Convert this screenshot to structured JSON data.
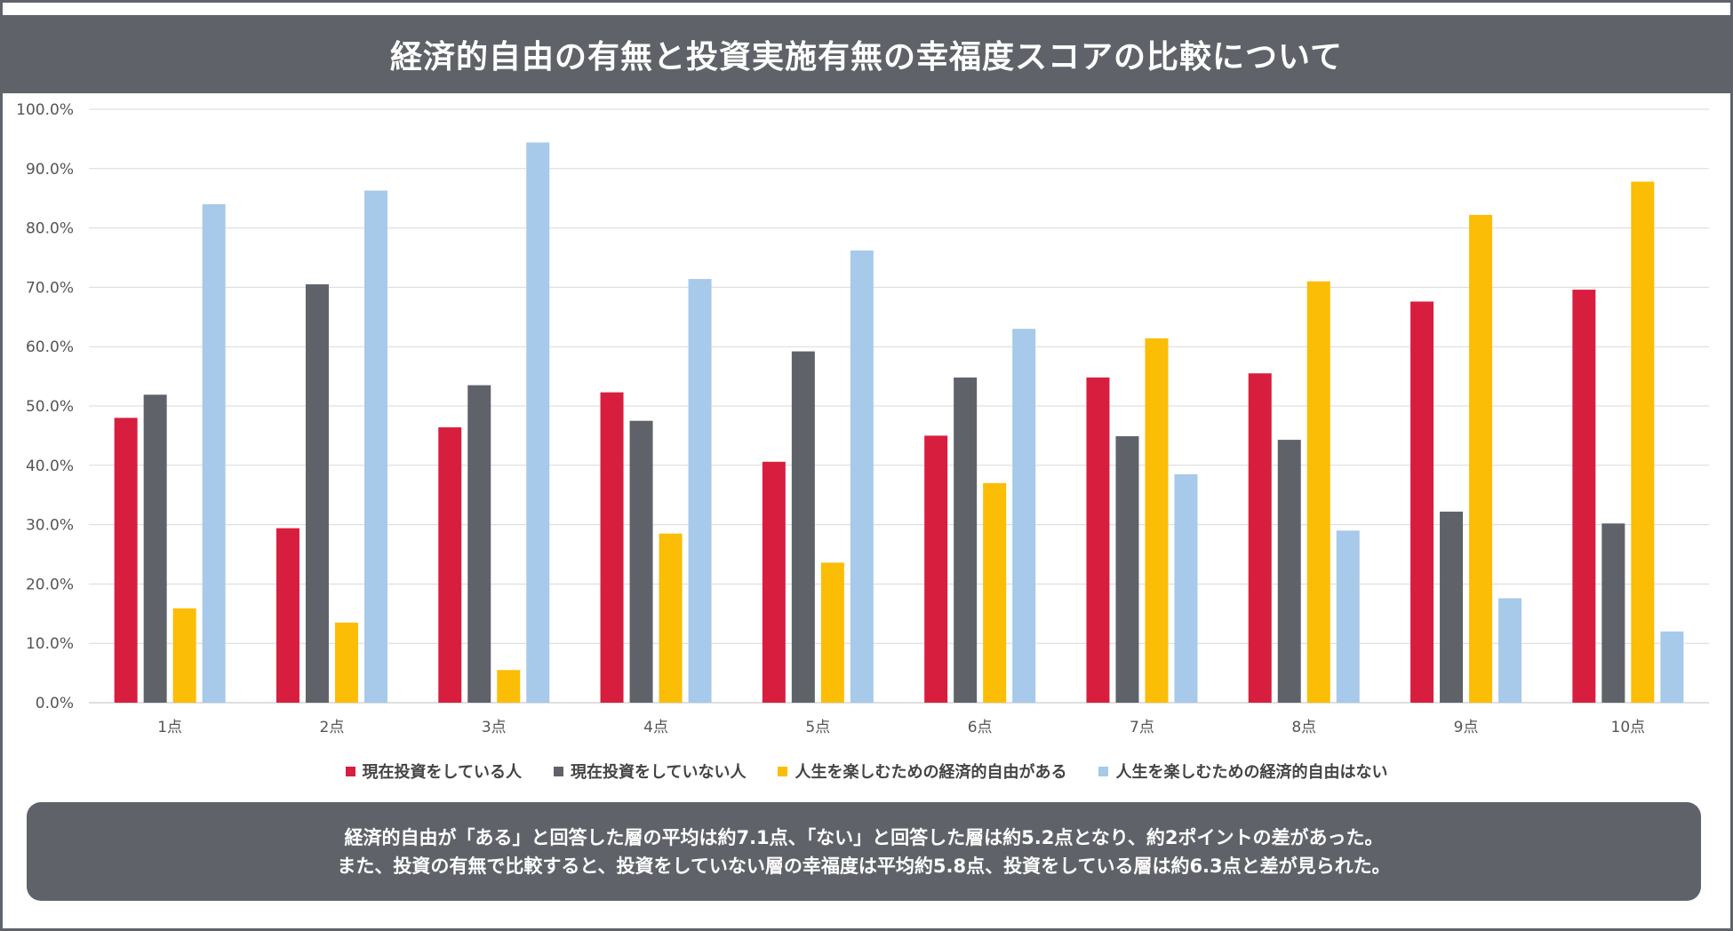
{
  "title": "経済的自由の有無と投資実施有無の幸福度スコアの比較について",
  "chart_data": {
    "type": "bar",
    "title": "経済的自由の有無と投資実施有無の幸福度スコアの比較について",
    "categories": [
      "1点",
      "2点",
      "3点",
      "4点",
      "5点",
      "6点",
      "7点",
      "8点",
      "9点",
      "10点"
    ],
    "y_ticks": [
      "0.0%",
      "10.0%",
      "20.0%",
      "30.0%",
      "40.0%",
      "50.0%",
      "60.0%",
      "70.0%",
      "80.0%",
      "90.0%",
      "100.0%"
    ],
    "ylim": [
      0,
      100
    ],
    "grid": true,
    "legend_position": "bottom",
    "series": [
      {
        "name": "現在投資をしている人",
        "color": "#d81e3f",
        "values": [
          48.0,
          29.4,
          46.4,
          52.3,
          40.6,
          45.0,
          54.8,
          55.5,
          67.6,
          69.6
        ]
      },
      {
        "name": "現在投資をしていない人",
        "color": "#5f6369",
        "values": [
          51.9,
          70.5,
          53.5,
          47.5,
          59.2,
          54.8,
          44.9,
          44.3,
          32.2,
          30.2
        ]
      },
      {
        "name": "人生を楽しむための経済的自由がある",
        "color": "#fbbd05",
        "values": [
          15.9,
          13.5,
          5.5,
          28.5,
          23.6,
          37.0,
          61.4,
          71.0,
          82.2,
          87.8
        ]
      },
      {
        "name": "人生を楽しむための経済的自由はない",
        "color": "#a7c9ea",
        "values": [
          84.0,
          86.3,
          94.4,
          71.4,
          76.2,
          63.0,
          38.5,
          29.0,
          17.6,
          12.0
        ]
      }
    ]
  },
  "summary": {
    "line1": "経済的自由が「ある」と回答した層の平均は約7.1点、「ない」と回答した層は約5.2点となり、約2ポイントの差があった。",
    "line2": "また、投資の有無で比較すると、投資をしていない層の幸福度は平均約5.8点、投資をしている層は約6.3点と差が見られた。"
  }
}
